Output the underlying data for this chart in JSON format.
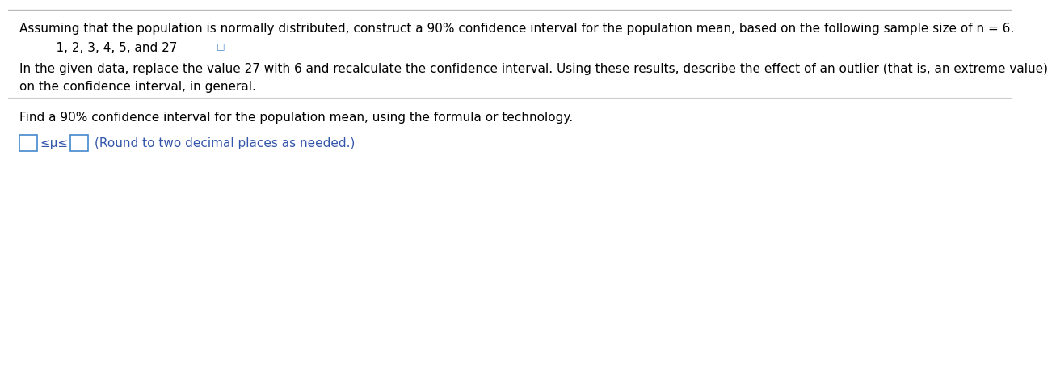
{
  "bg_color": "#ffffff",
  "line1": "Assuming that the population is normally distributed, construct a 90% confidence interval for the population mean, based on the following sample size of n = 6.",
  "line2_text": "    1, 2, 3, 4, 5, and 27 ",
  "line2_icon": "□",
  "line3": "In the given data, replace the value 27 with 6 and recalculate the confidence interval. Using these results, describe the effect of an outlier (that is, an extreme value)",
  "line4": "on the confidence interval, in general.",
  "line5": "Find a 90% confidence interval for the population mean, using the formula or technology.",
  "leq_mu_leq": "≤μ≤",
  "round_note": "(Round to two decimal places as needed.)",
  "text_color": "#000000",
  "blue_color": "#3355aa",
  "box_color": "#4488cc",
  "sep_color": "#cccccc",
  "font_size": 11.0,
  "top_border_color": "#bbbbbb"
}
